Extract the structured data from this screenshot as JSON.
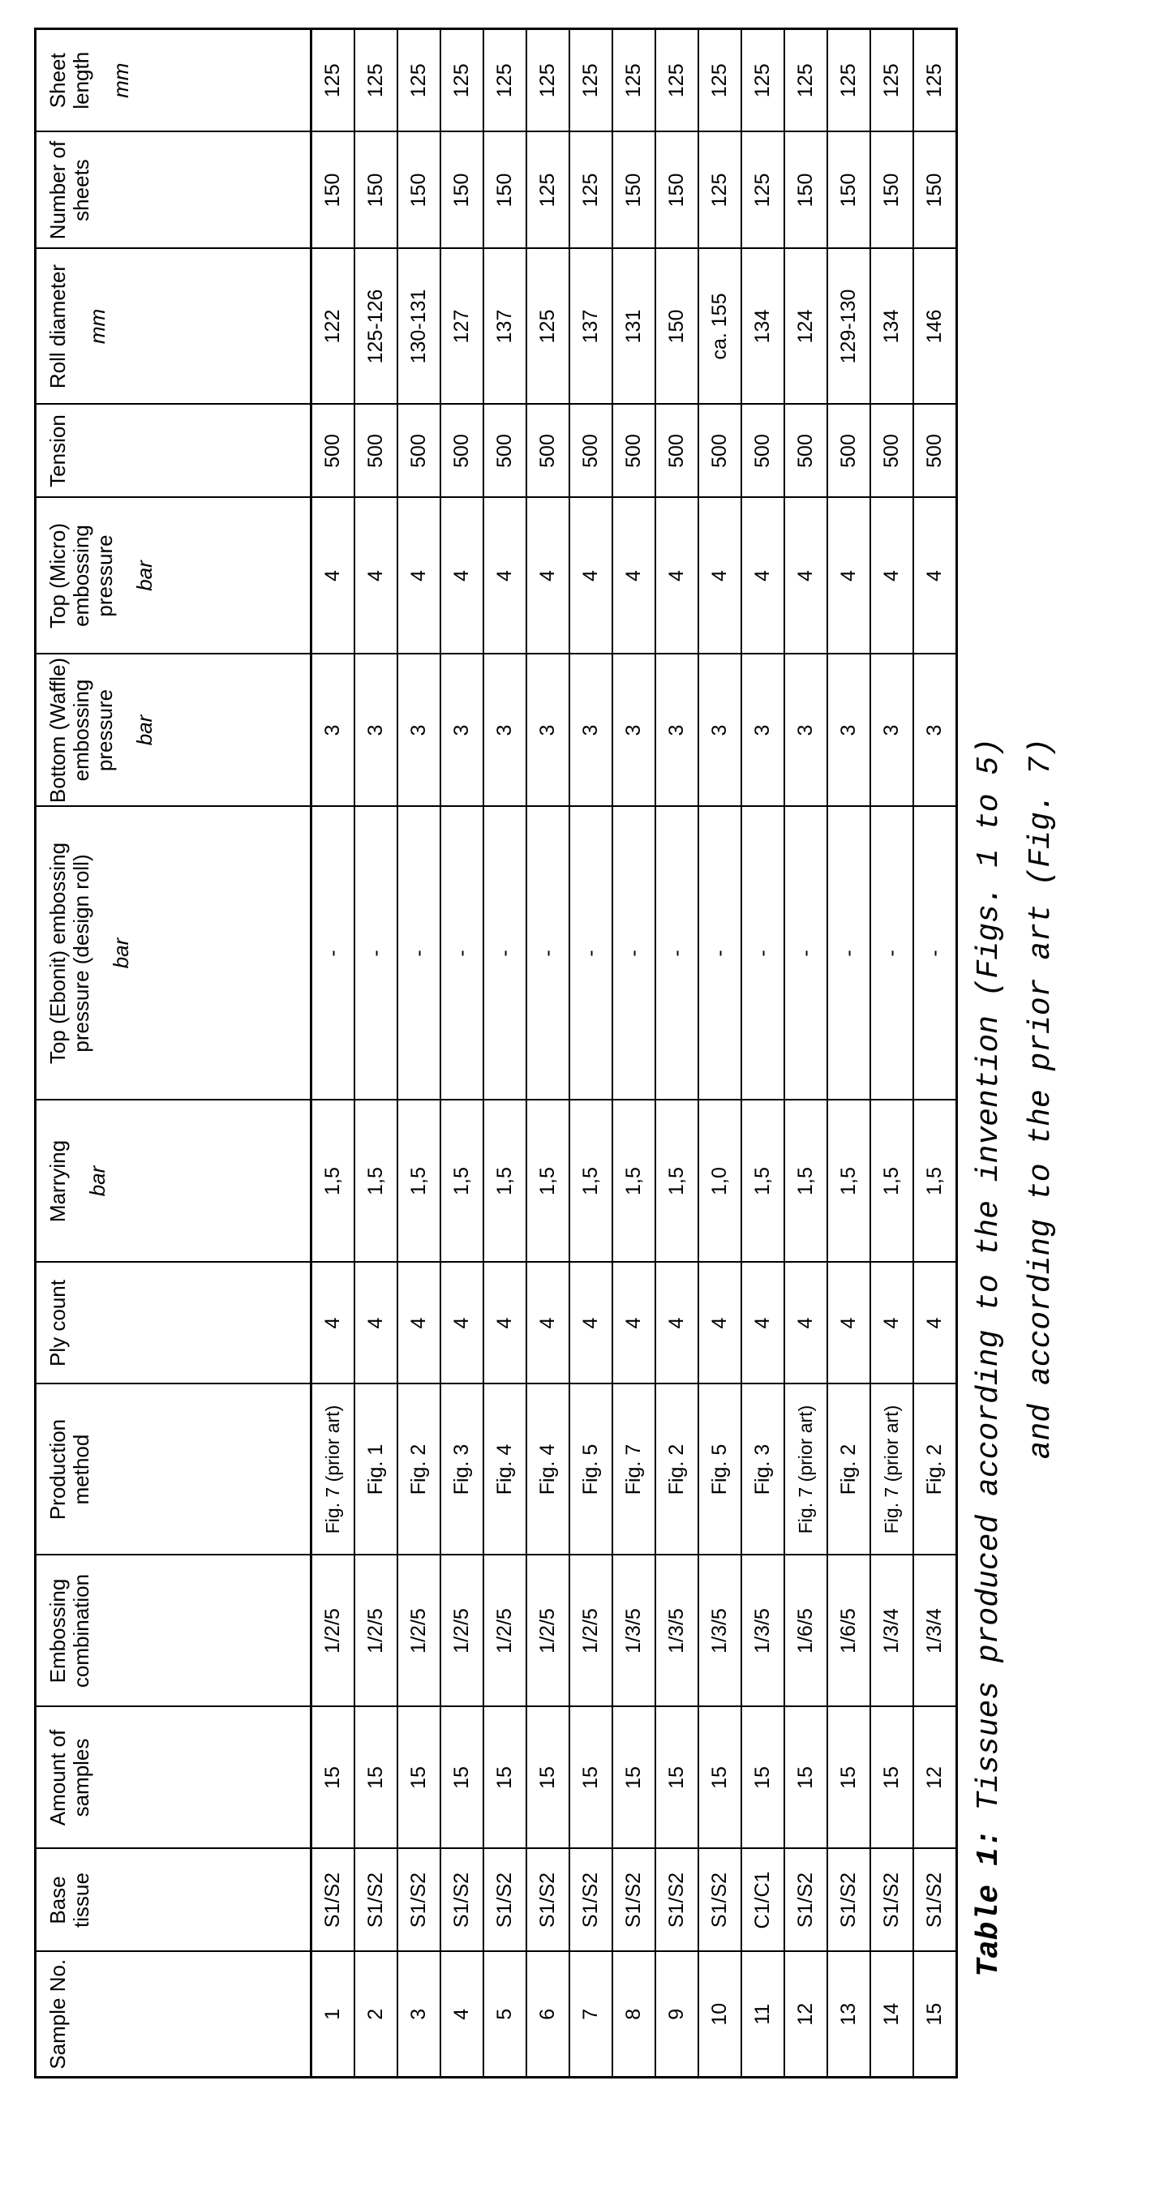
{
  "table": {
    "columns": [
      {
        "label": "Sample No.",
        "unit": ""
      },
      {
        "label": "Base tissue",
        "unit": ""
      },
      {
        "label": "Amount of samples",
        "unit": ""
      },
      {
        "label": "Embossing combination",
        "unit": ""
      },
      {
        "label": "Production method",
        "unit": ""
      },
      {
        "label": "Ply count",
        "unit": ""
      },
      {
        "label": "Marrying",
        "unit": "bar"
      },
      {
        "label": "Top (Ebonit) embossing pressure (design roll)",
        "unit": "bar"
      },
      {
        "label": "Bottom (Waffle) embossing pressure",
        "unit": "bar"
      },
      {
        "label": "Top (Micro) embossing pressure",
        "unit": "bar"
      },
      {
        "label": "Tension",
        "unit": ""
      },
      {
        "label": "Roll diameter",
        "unit": "mm"
      },
      {
        "label": "Number of sheets",
        "unit": ""
      },
      {
        "label": "Sheet length",
        "unit": "mm"
      }
    ],
    "rows": [
      [
        "1",
        "S1/S2",
        "15",
        "1/2/5",
        "Fig. 7 (prior art)",
        "4",
        "1,5",
        "-",
        "3",
        "4",
        "500",
        "122",
        "150",
        "125"
      ],
      [
        "2",
        "S1/S2",
        "15",
        "1/2/5",
        "Fig. 1",
        "4",
        "1,5",
        "-",
        "3",
        "4",
        "500",
        "125-126",
        "150",
        "125"
      ],
      [
        "3",
        "S1/S2",
        "15",
        "1/2/5",
        "Fig. 2",
        "4",
        "1,5",
        "-",
        "3",
        "4",
        "500",
        "130-131",
        "150",
        "125"
      ],
      [
        "4",
        "S1/S2",
        "15",
        "1/2/5",
        "Fig. 3",
        "4",
        "1,5",
        "-",
        "3",
        "4",
        "500",
        "127",
        "150",
        "125"
      ],
      [
        "5",
        "S1/S2",
        "15",
        "1/2/5",
        "Fig. 4",
        "4",
        "1,5",
        "-",
        "3",
        "4",
        "500",
        "137",
        "150",
        "125"
      ],
      [
        "6",
        "S1/S2",
        "15",
        "1/2/5",
        "Fig. 4",
        "4",
        "1,5",
        "-",
        "3",
        "4",
        "500",
        "125",
        "125",
        "125"
      ],
      [
        "7",
        "S1/S2",
        "15",
        "1/2/5",
        "Fig. 5",
        "4",
        "1,5",
        "-",
        "3",
        "4",
        "500",
        "137",
        "125",
        "125"
      ],
      [
        "8",
        "S1/S2",
        "15",
        "1/3/5",
        "Fig. 7",
        "4",
        "1,5",
        "-",
        "3",
        "4",
        "500",
        "131",
        "150",
        "125"
      ],
      [
        "9",
        "S1/S2",
        "15",
        "1/3/5",
        "Fig. 2",
        "4",
        "1,5",
        "-",
        "3",
        "4",
        "500",
        "150",
        "150",
        "125"
      ],
      [
        "10",
        "S1/S2",
        "15",
        "1/3/5",
        "Fig. 5",
        "4",
        "1,0",
        "-",
        "3",
        "4",
        "500",
        "ca. 155",
        "125",
        "125"
      ],
      [
        "11",
        "C1/C1",
        "15",
        "1/3/5",
        "Fig. 3",
        "4",
        "1,5",
        "-",
        "3",
        "4",
        "500",
        "134",
        "125",
        "125"
      ],
      [
        "12",
        "S1/S2",
        "15",
        "1/6/5",
        "Fig. 7 (prior art)",
        "4",
        "1,5",
        "-",
        "3",
        "4",
        "500",
        "124",
        "150",
        "125"
      ],
      [
        "13",
        "S1/S2",
        "15",
        "1/6/5",
        "Fig. 2",
        "4",
        "1,5",
        "-",
        "3",
        "4",
        "500",
        "129-130",
        "150",
        "125"
      ],
      [
        "14",
        "S1/S2",
        "15",
        "1/3/4",
        "Fig. 7 (prior art)",
        "4",
        "1,5",
        "-",
        "3",
        "4",
        "500",
        "134",
        "150",
        "125"
      ],
      [
        "15",
        "S1/S2",
        "12",
        "1/3/4",
        "Fig. 2",
        "4",
        "1,5",
        "-",
        "3",
        "4",
        "500",
        "146",
        "150",
        "125"
      ]
    ]
  },
  "caption": {
    "label": "Table 1:",
    "line1": " Tissues produced according to the invention (Figs. 1 to 5)",
    "line2": "and according to the prior art (Fig. 7)"
  }
}
